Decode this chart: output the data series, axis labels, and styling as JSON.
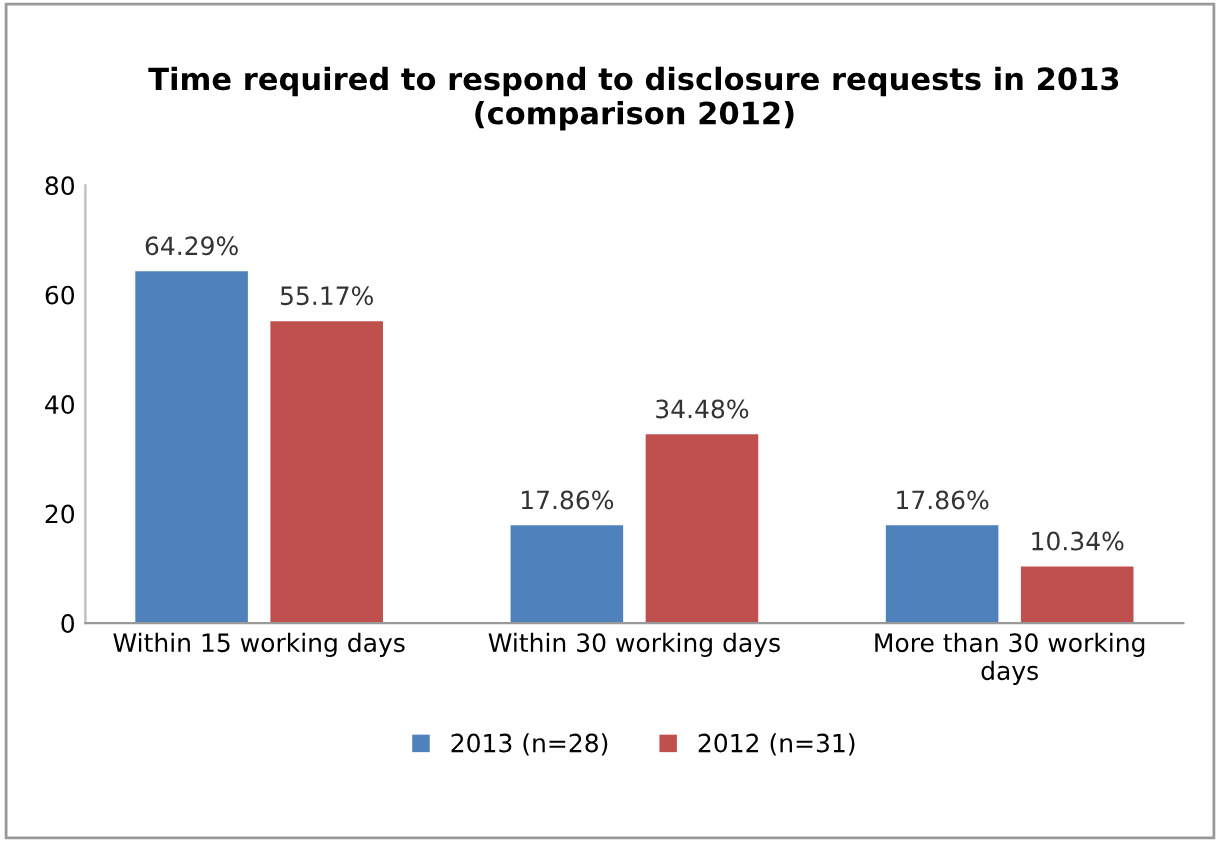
{
  "chart_data": {
    "type": "bar",
    "title": "Time required to respond to disclosure requests in 2013\n(comparison 2012)",
    "categories": [
      "Within 15 working days",
      "Within 30 working days",
      "More than 30 working\ndays"
    ],
    "series": [
      {
        "name": "2013 (n=28)",
        "color": "#4f81bd",
        "values": [
          64.29,
          17.86,
          17.86
        ],
        "value_labels": [
          "64.29%",
          "17.86%",
          "17.86%"
        ]
      },
      {
        "name": "2012 (n=31)",
        "color": "#c0504d",
        "values": [
          55.17,
          34.48,
          10.34
        ],
        "value_labels": [
          "55.17%",
          "34.48%",
          "10.34%"
        ]
      }
    ],
    "ylim": [
      0,
      80
    ],
    "yticks": [
      0,
      20,
      40,
      60,
      80
    ],
    "grid": false,
    "legend": "bottom"
  }
}
